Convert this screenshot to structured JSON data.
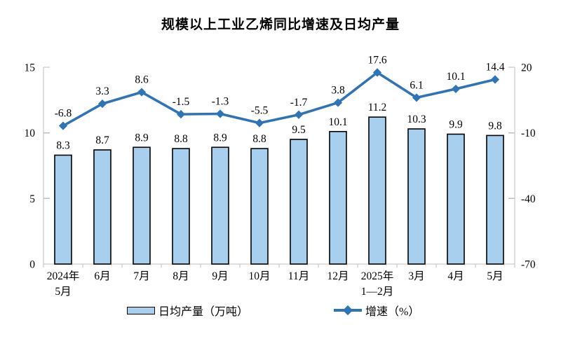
{
  "title": "规模以上工业乙烯同比增速及日均产量",
  "legend": {
    "bar_label": "日均产量（万吨）",
    "line_label": "增速（%）"
  },
  "colors": {
    "bar_fill": "#A9CFEF",
    "bar_border": "#000000",
    "line": "#2E74B6",
    "axis": "#BFBFBF",
    "text": "#000000"
  },
  "chart_data": {
    "type": "bar-line-combo",
    "title": "规模以上工业乙烯同比增速及日均产量",
    "categories": [
      "2024年5月",
      "6月",
      "7月",
      "8月",
      "9月",
      "10月",
      "11月",
      "12月",
      "2025年1—2月",
      "3月",
      "4月",
      "5月"
    ],
    "category_lines": [
      [
        "2024年",
        "5月"
      ],
      [
        "6月"
      ],
      [
        "7月"
      ],
      [
        "8月"
      ],
      [
        "9月"
      ],
      [
        "10月"
      ],
      [
        "11月"
      ],
      [
        "12月"
      ],
      [
        "2025年",
        "1—2月"
      ],
      [
        "3月"
      ],
      [
        "4月"
      ],
      [
        "5月"
      ]
    ],
    "series": [
      {
        "name": "日均产量（万吨）",
        "type": "bar",
        "axis": "left",
        "values": [
          8.3,
          8.7,
          8.9,
          8.8,
          8.9,
          8.8,
          9.5,
          10.1,
          11.2,
          10.3,
          9.9,
          9.8
        ]
      },
      {
        "name": "增速（%）",
        "type": "line",
        "axis": "right",
        "values": [
          -6.8,
          3.3,
          8.6,
          -1.5,
          -1.3,
          -5.5,
          -1.7,
          3.8,
          17.6,
          6.1,
          10.1,
          14.4
        ]
      }
    ],
    "left_axis": {
      "range": [
        0,
        15
      ],
      "ticks": [
        0,
        5,
        10,
        15
      ]
    },
    "right_axis": {
      "range": [
        -70,
        20
      ],
      "ticks": [
        -70,
        -40,
        -10,
        20
      ]
    },
    "grid": false,
    "legend_position": "bottom"
  }
}
